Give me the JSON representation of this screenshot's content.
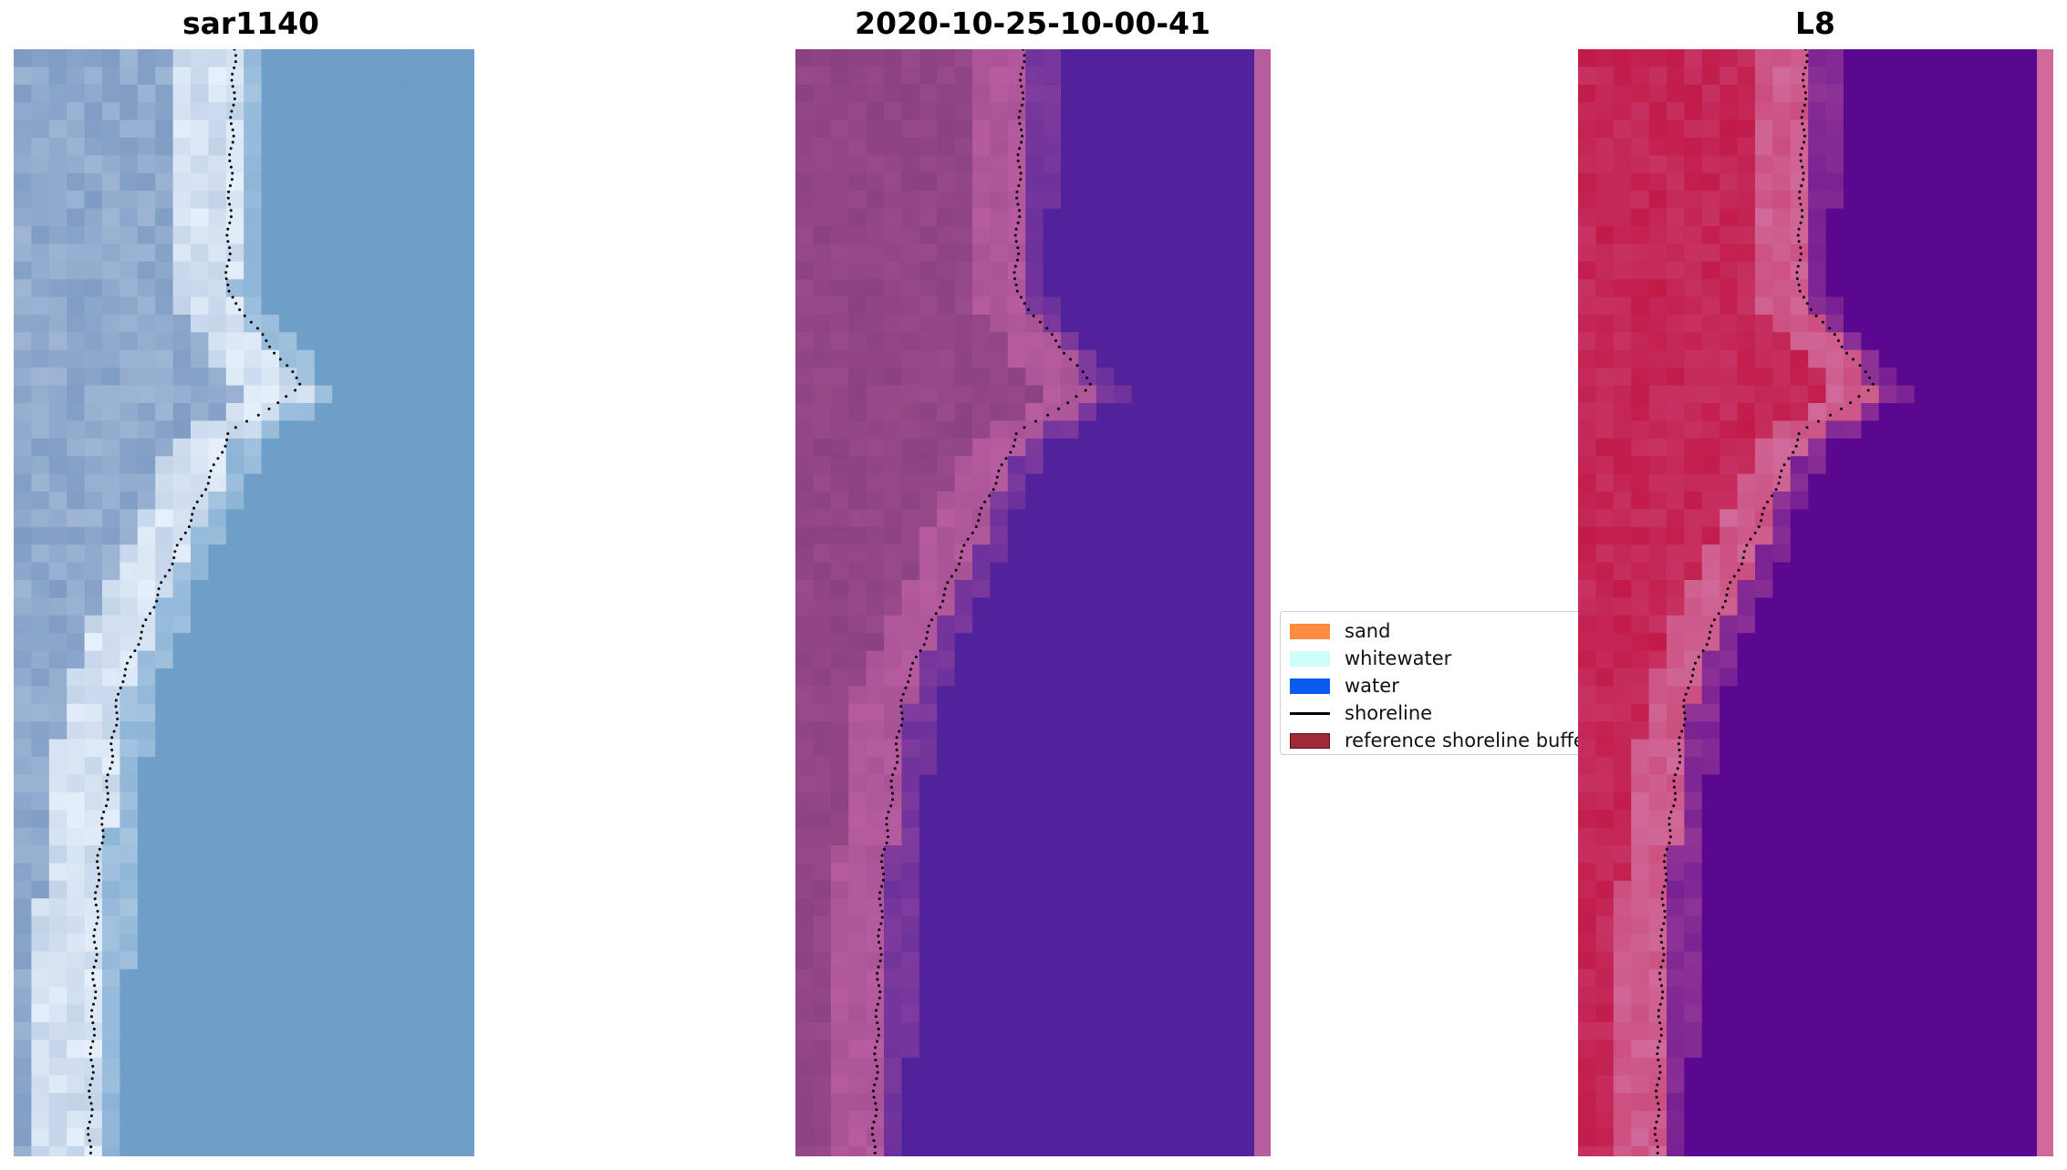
{
  "panels": [
    {
      "title": "sar1140"
    },
    {
      "title": "2020-10-25-10-00-41"
    },
    {
      "title": "L8"
    }
  ],
  "legend": {
    "items": [
      {
        "label": "sand",
        "color": "#ff8c3f",
        "kind": "patch"
      },
      {
        "label": "whitewater",
        "color": "#ccfffb",
        "kind": "patch"
      },
      {
        "label": "water",
        "color": "#0a5cf0",
        "kind": "patch"
      },
      {
        "label": "shoreline",
        "color": "#000000",
        "kind": "line"
      },
      {
        "label": "reference shoreline buffer",
        "color": "#9e2a37",
        "kind": "patch"
      }
    ]
  },
  "colors": {
    "rgb_land": "#7f9cc4",
    "rgb_beach": "#e6f0fb",
    "rgb_water": "#6e9fc9",
    "class_land": "#8a4282",
    "class_beach": "#b85ca0",
    "class_water": "#52229a",
    "ndwi_land": "#c21b4a",
    "ndwi_beach": "#d06a9a",
    "ndwi_water": "#5b0891",
    "shoreline_dots": "#000000"
  }
}
